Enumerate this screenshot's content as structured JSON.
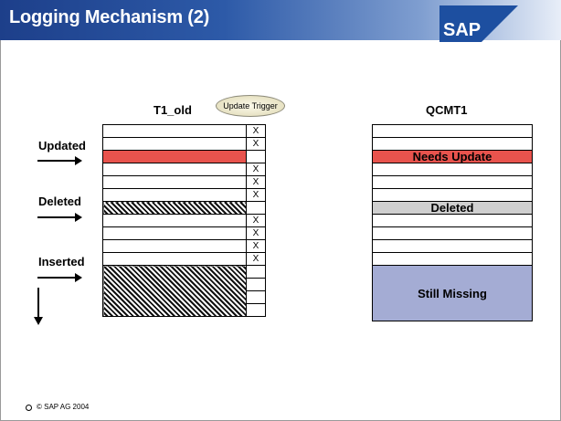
{
  "header": {
    "title": "Logging Mechanism (2)",
    "logo_text": "SAP"
  },
  "left_table": {
    "title": "T1_old",
    "trigger_label": "Update Trigger",
    "rows": [
      {
        "fill": "white",
        "x": "X"
      },
      {
        "fill": "white",
        "x": "X"
      },
      {
        "fill": "red",
        "x": ""
      },
      {
        "fill": "white",
        "x": "X"
      },
      {
        "fill": "white",
        "x": "X"
      },
      {
        "fill": "white",
        "x": "X"
      },
      {
        "fill": "hatch",
        "x": ""
      },
      {
        "fill": "white",
        "x": "X"
      },
      {
        "fill": "white",
        "x": "X"
      },
      {
        "fill": "white",
        "x": "X"
      },
      {
        "fill": "white",
        "x": "X"
      },
      {
        "fill": "hatch",
        "x": ""
      },
      {
        "fill": "hatch",
        "x": ""
      },
      {
        "fill": "hatch",
        "x": ""
      },
      {
        "fill": "hatch",
        "x": ""
      }
    ]
  },
  "right_table": {
    "title": "QCMT1",
    "rows": [
      {
        "fill": "white",
        "text": ""
      },
      {
        "fill": "white",
        "text": ""
      },
      {
        "fill": "red",
        "text": "Needs Update"
      },
      {
        "fill": "white",
        "text": ""
      },
      {
        "fill": "white",
        "text": ""
      },
      {
        "fill": "white",
        "text": ""
      },
      {
        "fill": "gray",
        "text": "Deleted"
      },
      {
        "fill": "white",
        "text": ""
      },
      {
        "fill": "white",
        "text": ""
      },
      {
        "fill": "white",
        "text": ""
      },
      {
        "fill": "white",
        "text": ""
      },
      {
        "fill": "blue",
        "text": "Still Missing"
      }
    ]
  },
  "labels": {
    "updated": "Updated",
    "deleted": "Deleted",
    "inserted": "Inserted"
  },
  "footer": {
    "copyright": "© SAP AG 2004"
  },
  "colors": {
    "header_dark": "#1d3f8a",
    "needs_update": "#e8534d",
    "deleted": "#cfcfcf",
    "still_missing": "#a4acd4"
  }
}
